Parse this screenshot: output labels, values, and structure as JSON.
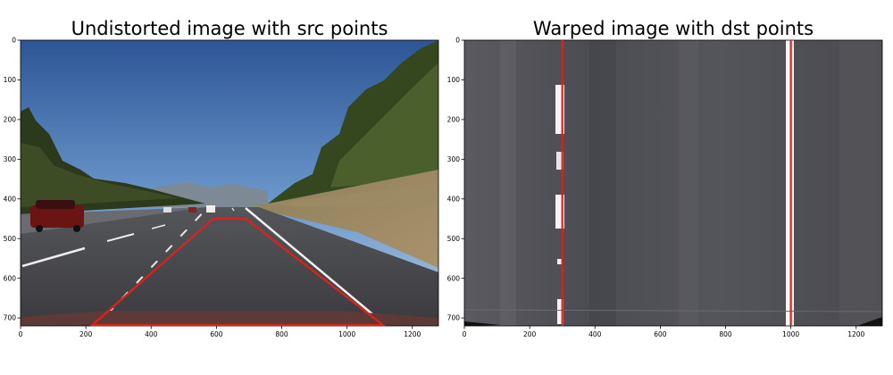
{
  "panels": [
    {
      "title": "Undistorted image with src points",
      "x_ticks": [
        "0",
        "200",
        "400",
        "600",
        "800",
        "1000",
        "1200"
      ],
      "y_ticks": [
        "0",
        "100",
        "200",
        "300",
        "400",
        "500",
        "600",
        "700"
      ],
      "overlay_color": "#e0201a",
      "scene": "road-photo"
    },
    {
      "title": "Warped image with dst points",
      "x_ticks": [
        "0",
        "200",
        "400",
        "600",
        "800",
        "1000",
        "1200"
      ],
      "y_ticks": [
        "0",
        "100",
        "200",
        "300",
        "400",
        "500",
        "600",
        "700"
      ],
      "overlay_color": "#e0201a",
      "scene": "warped-road"
    }
  ],
  "src_points": [
    [
      220,
      720
    ],
    [
      590,
      450
    ],
    [
      690,
      450
    ],
    [
      1110,
      720
    ]
  ],
  "dst_points_x": [
    300,
    1000
  ],
  "image_extent": {
    "width": 1280,
    "height": 720
  }
}
